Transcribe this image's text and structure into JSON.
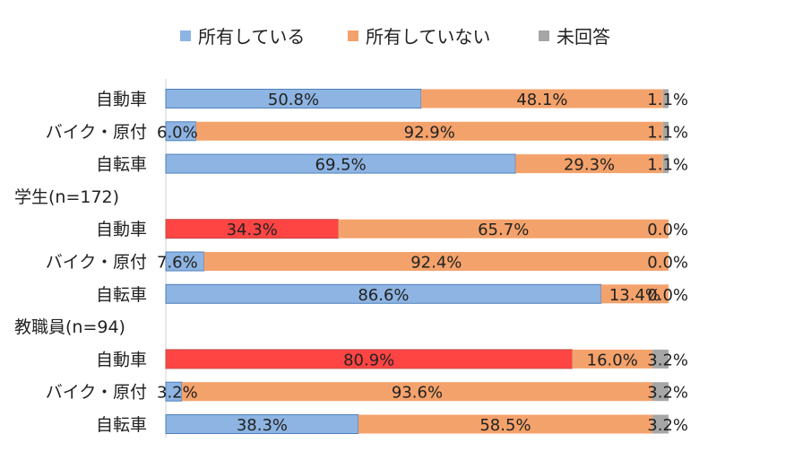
{
  "colors": {
    "owned": "#8DB4E2",
    "owned_highlight": "#FF4444",
    "not_owned": "#F4A26B",
    "no_answer": "#A6A6A6"
  },
  "chart_data": {
    "type": "bar",
    "orientation": "horizontal",
    "stacked": "percent",
    "xlim": [
      0,
      100
    ],
    "legend_position": "top",
    "grid": false,
    "series": [
      {
        "name": "所有している",
        "key": "owned"
      },
      {
        "name": "所有していない",
        "key": "not_owned"
      },
      {
        "name": "未回答",
        "key": "no_answer"
      }
    ],
    "groups": [
      {
        "label": "",
        "rows": [
          {
            "category": "自動車",
            "values": [
              50.8,
              48.1,
              1.1
            ],
            "labels": [
              "50.8%",
              "48.1%",
              "1.1%"
            ],
            "highlight": false
          },
          {
            "category": "バイク・原付",
            "values": [
              6.0,
              92.9,
              1.1
            ],
            "labels": [
              "6.0%",
              "92.9%",
              "1.1%"
            ],
            "highlight": false
          },
          {
            "category": "自転車",
            "values": [
              69.5,
              29.3,
              1.1
            ],
            "labels": [
              "69.5%",
              "29.3%",
              "1.1%"
            ],
            "highlight": false
          }
        ]
      },
      {
        "label": "学生(n=172)",
        "rows": [
          {
            "category": "自動車",
            "values": [
              34.3,
              65.7,
              0.0
            ],
            "labels": [
              "34.3%",
              "65.7%",
              "0.0%"
            ],
            "highlight": true
          },
          {
            "category": "バイク・原付",
            "values": [
              7.6,
              92.4,
              0.0
            ],
            "labels": [
              "7.6%",
              "92.4%",
              "0.0%"
            ],
            "highlight": false
          },
          {
            "category": "自転車",
            "values": [
              86.6,
              13.4,
              0.0
            ],
            "labels": [
              "86.6%",
              "13.4%",
              "0.0%"
            ],
            "highlight": false
          }
        ]
      },
      {
        "label": "教職員(n=94)",
        "rows": [
          {
            "category": "自動車",
            "values": [
              80.9,
              16.0,
              3.2
            ],
            "labels": [
              "80.9%",
              "16.0%",
              "3.2%"
            ],
            "highlight": true
          },
          {
            "category": "バイク・原付",
            "values": [
              3.2,
              93.6,
              3.2
            ],
            "labels": [
              "3.2%",
              "93.6%",
              "3.2%"
            ],
            "highlight": false
          },
          {
            "category": "自転車",
            "values": [
              38.3,
              58.5,
              3.2
            ],
            "labels": [
              "38.3%",
              "58.5%",
              "3.2%"
            ],
            "highlight": false
          }
        ]
      }
    ]
  }
}
